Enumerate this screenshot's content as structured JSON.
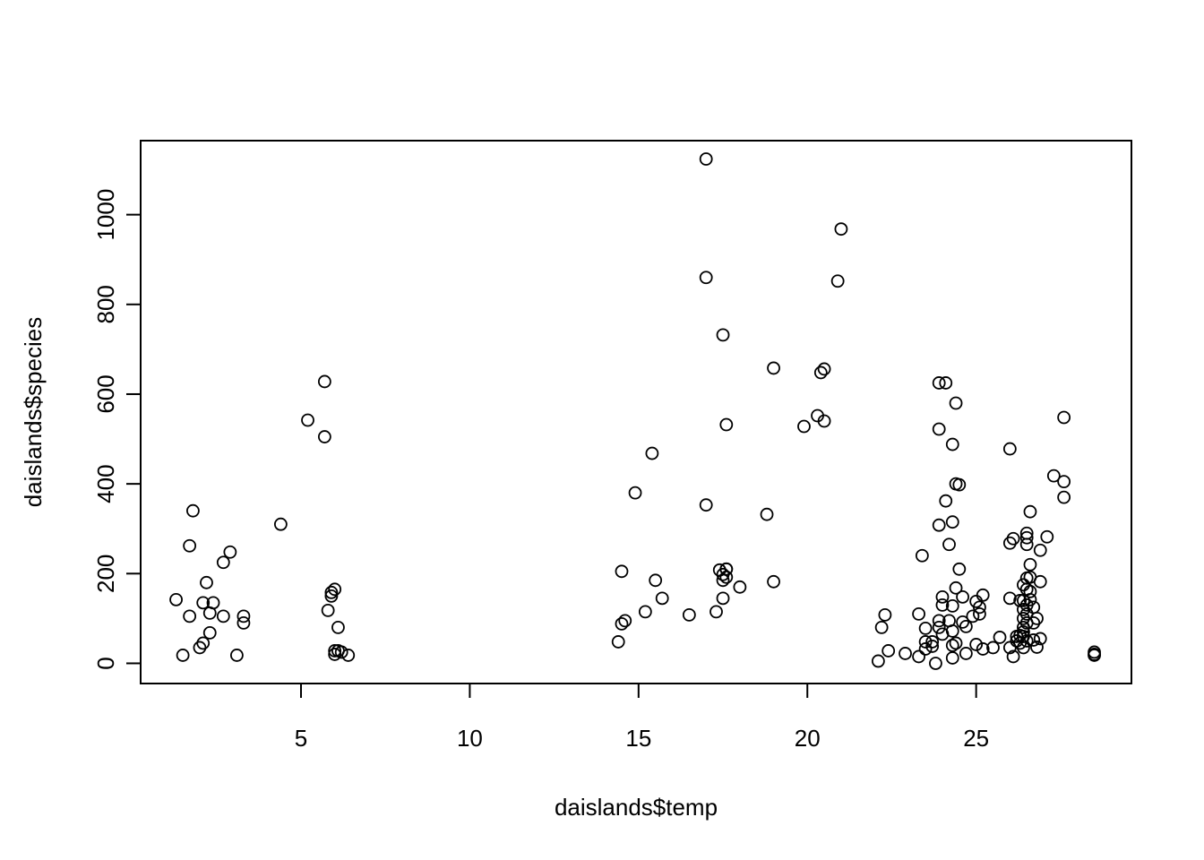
{
  "chart_data": {
    "type": "scatter",
    "title": "",
    "xlabel": "daislands$temp",
    "ylabel": "daislands$species",
    "xlim": [
      0.25,
      29.6
    ],
    "ylim": [
      -45,
      1165
    ],
    "x_ticks": [
      5,
      10,
      15,
      20,
      25
    ],
    "y_ticks": [
      0,
      200,
      400,
      600,
      800,
      1000
    ],
    "grid": false,
    "legend": "none",
    "marker": "open-circle",
    "colors": {
      "marker": "#000000",
      "axes": "#000000",
      "background": "#ffffff"
    },
    "points": [
      [
        1.3,
        142
      ],
      [
        1.5,
        18
      ],
      [
        1.7,
        105
      ],
      [
        1.7,
        262
      ],
      [
        1.8,
        340
      ],
      [
        2.0,
        35
      ],
      [
        2.1,
        45
      ],
      [
        2.1,
        135
      ],
      [
        2.2,
        180
      ],
      [
        2.3,
        68
      ],
      [
        2.3,
        112
      ],
      [
        2.4,
        135
      ],
      [
        2.7,
        225
      ],
      [
        2.7,
        105
      ],
      [
        2.9,
        248
      ],
      [
        3.1,
        18
      ],
      [
        3.3,
        105
      ],
      [
        3.3,
        90
      ],
      [
        4.4,
        310
      ],
      [
        5.2,
        542
      ],
      [
        5.7,
        628
      ],
      [
        5.7,
        505
      ],
      [
        5.8,
        118
      ],
      [
        5.9,
        158
      ],
      [
        5.9,
        150
      ],
      [
        6.0,
        165
      ],
      [
        6.0,
        28
      ],
      [
        6.0,
        20
      ],
      [
        6.1,
        80
      ],
      [
        6.1,
        28
      ],
      [
        6.2,
        25
      ],
      [
        6.4,
        18
      ],
      [
        14.4,
        48
      ],
      [
        14.5,
        88
      ],
      [
        14.5,
        205
      ],
      [
        14.6,
        95
      ],
      [
        14.9,
        380
      ],
      [
        15.2,
        115
      ],
      [
        15.4,
        468
      ],
      [
        15.5,
        185
      ],
      [
        15.7,
        145
      ],
      [
        16.5,
        108
      ],
      [
        17.0,
        1124
      ],
      [
        17.0,
        860
      ],
      [
        17.0,
        353
      ],
      [
        17.3,
        115
      ],
      [
        17.4,
        208
      ],
      [
        17.5,
        732
      ],
      [
        17.5,
        145
      ],
      [
        17.5,
        198
      ],
      [
        17.5,
        185
      ],
      [
        17.6,
        210
      ],
      [
        17.6,
        192
      ],
      [
        17.6,
        532
      ],
      [
        17.6,
        210
      ],
      [
        18.0,
        170
      ],
      [
        18.8,
        332
      ],
      [
        19.0,
        658
      ],
      [
        19.0,
        182
      ],
      [
        19.9,
        528
      ],
      [
        20.3,
        552
      ],
      [
        20.4,
        648
      ],
      [
        20.5,
        656
      ],
      [
        20.5,
        540
      ],
      [
        20.9,
        852
      ],
      [
        21.0,
        968
      ],
      [
        22.1,
        5
      ],
      [
        22.2,
        80
      ],
      [
        22.3,
        108
      ],
      [
        22.4,
        28
      ],
      [
        22.9,
        22
      ],
      [
        23.3,
        110
      ],
      [
        23.3,
        15
      ],
      [
        23.4,
        240
      ],
      [
        23.5,
        78
      ],
      [
        23.5,
        48
      ],
      [
        23.5,
        32
      ],
      [
        23.7,
        48
      ],
      [
        23.7,
        38
      ],
      [
        23.8,
        0
      ],
      [
        23.9,
        625
      ],
      [
        23.9,
        522
      ],
      [
        23.9,
        308
      ],
      [
        23.9,
        95
      ],
      [
        23.9,
        80
      ],
      [
        24.0,
        148
      ],
      [
        24.0,
        130
      ],
      [
        24.0,
        65
      ],
      [
        24.1,
        625
      ],
      [
        24.1,
        362
      ],
      [
        24.2,
        265
      ],
      [
        24.2,
        95
      ],
      [
        24.3,
        488
      ],
      [
        24.3,
        315
      ],
      [
        24.3,
        128
      ],
      [
        24.3,
        72
      ],
      [
        24.3,
        40
      ],
      [
        24.3,
        12
      ],
      [
        24.4,
        400
      ],
      [
        24.4,
        580
      ],
      [
        24.4,
        168
      ],
      [
        24.4,
        45
      ],
      [
        24.5,
        398
      ],
      [
        24.5,
        210
      ],
      [
        24.6,
        148
      ],
      [
        24.6,
        92
      ],
      [
        24.7,
        82
      ],
      [
        24.7,
        22
      ],
      [
        24.9,
        105
      ],
      [
        25.0,
        138
      ],
      [
        25.0,
        42
      ],
      [
        25.1,
        125
      ],
      [
        25.1,
        110
      ],
      [
        25.2,
        152
      ],
      [
        25.2,
        32
      ],
      [
        25.5,
        35
      ],
      [
        25.7,
        58
      ],
      [
        26.0,
        478
      ],
      [
        26.0,
        268
      ],
      [
        26.0,
        145
      ],
      [
        26.0,
        35
      ],
      [
        26.1,
        278
      ],
      [
        26.1,
        15
      ],
      [
        26.2,
        60
      ],
      [
        26.2,
        50
      ],
      [
        26.3,
        140
      ],
      [
        26.3,
        62
      ],
      [
        26.3,
        45
      ],
      [
        26.4,
        175
      ],
      [
        26.4,
        140
      ],
      [
        26.4,
        120
      ],
      [
        26.4,
        100
      ],
      [
        26.4,
        80
      ],
      [
        26.4,
        70
      ],
      [
        26.4,
        60
      ],
      [
        26.4,
        35
      ],
      [
        26.5,
        290
      ],
      [
        26.5,
        280
      ],
      [
        26.5,
        265
      ],
      [
        26.5,
        190
      ],
      [
        26.5,
        165
      ],
      [
        26.5,
        130
      ],
      [
        26.5,
        110
      ],
      [
        26.5,
        90
      ],
      [
        26.5,
        50
      ],
      [
        26.6,
        338
      ],
      [
        26.6,
        220
      ],
      [
        26.6,
        192
      ],
      [
        26.6,
        160
      ],
      [
        26.6,
        142
      ],
      [
        26.7,
        125
      ],
      [
        26.7,
        90
      ],
      [
        26.7,
        52
      ],
      [
        26.8,
        100
      ],
      [
        26.8,
        36
      ],
      [
        26.9,
        252
      ],
      [
        26.9,
        182
      ],
      [
        26.9,
        55
      ],
      [
        27.1,
        282
      ],
      [
        27.3,
        418
      ],
      [
        27.6,
        548
      ],
      [
        27.6,
        405
      ],
      [
        27.6,
        370
      ],
      [
        28.5,
        25
      ],
      [
        28.5,
        20
      ],
      [
        28.5,
        18
      ]
    ]
  }
}
